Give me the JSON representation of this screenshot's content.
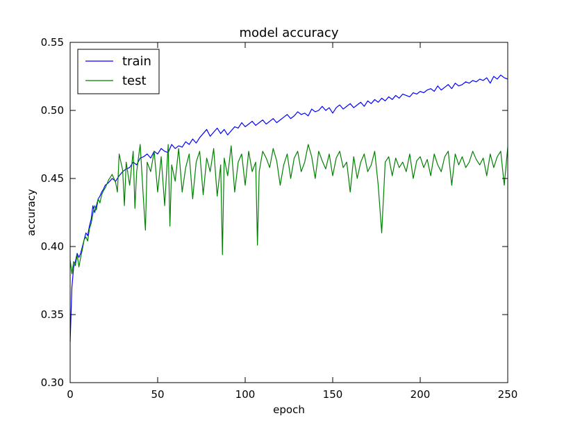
{
  "chart_data": {
    "type": "line",
    "title": "model accuracy",
    "xlabel": "epoch",
    "ylabel": "accuracy",
    "xlim": [
      0,
      250
    ],
    "ylim": [
      0.3,
      0.55
    ],
    "xticks": [
      0,
      50,
      100,
      150,
      200,
      250
    ],
    "yticks": [
      0.3,
      0.35,
      0.4,
      0.45,
      0.5,
      0.55
    ],
    "xtick_labels": [
      "0",
      "50",
      "100",
      "150",
      "200",
      "250"
    ],
    "ytick_labels": [
      "0.30",
      "0.35",
      "0.40",
      "0.45",
      "0.50",
      "0.55"
    ],
    "grid": false,
    "legend_position": "top-left",
    "series": [
      {
        "name": "train",
        "color": "#0000ff",
        "x": [
          0,
          1,
          2,
          3,
          4,
          5,
          6,
          7,
          8,
          9,
          10,
          11,
          12,
          13,
          14,
          15,
          16,
          17,
          18,
          19,
          20,
          22,
          24,
          26,
          28,
          30,
          32,
          34,
          36,
          38,
          40,
          42,
          44,
          46,
          48,
          50,
          52,
          54,
          56,
          58,
          60,
          62,
          64,
          66,
          68,
          70,
          72,
          74,
          76,
          78,
          80,
          82,
          84,
          86,
          88,
          90,
          92,
          94,
          96,
          98,
          100,
          102,
          104,
          106,
          108,
          110,
          112,
          114,
          116,
          118,
          120,
          122,
          124,
          126,
          128,
          130,
          132,
          134,
          136,
          138,
          140,
          142,
          144,
          146,
          148,
          150,
          152,
          154,
          156,
          158,
          160,
          162,
          164,
          166,
          168,
          170,
          172,
          174,
          176,
          178,
          180,
          182,
          184,
          186,
          188,
          190,
          192,
          194,
          196,
          198,
          200,
          202,
          204,
          206,
          208,
          210,
          212,
          214,
          216,
          218,
          220,
          222,
          224,
          226,
          228,
          230,
          232,
          234,
          236,
          238,
          240,
          242,
          244,
          246,
          248,
          250
        ],
        "values": [
          0.33,
          0.37,
          0.385,
          0.389,
          0.395,
          0.392,
          0.395,
          0.4,
          0.405,
          0.41,
          0.408,
          0.415,
          0.42,
          0.43,
          0.425,
          0.43,
          0.435,
          0.437,
          0.44,
          0.442,
          0.445,
          0.447,
          0.45,
          0.448,
          0.452,
          0.455,
          0.457,
          0.458,
          0.462,
          0.46,
          0.465,
          0.466,
          0.468,
          0.465,
          0.47,
          0.468,
          0.472,
          0.47,
          0.469,
          0.475,
          0.472,
          0.474,
          0.473,
          0.477,
          0.475,
          0.479,
          0.476,
          0.48,
          0.483,
          0.486,
          0.481,
          0.484,
          0.487,
          0.483,
          0.486,
          0.482,
          0.485,
          0.488,
          0.487,
          0.491,
          0.488,
          0.49,
          0.492,
          0.489,
          0.491,
          0.493,
          0.49,
          0.492,
          0.494,
          0.491,
          0.493,
          0.495,
          0.497,
          0.494,
          0.496,
          0.499,
          0.497,
          0.498,
          0.496,
          0.501,
          0.499,
          0.5,
          0.503,
          0.5,
          0.502,
          0.498,
          0.502,
          0.504,
          0.501,
          0.503,
          0.505,
          0.502,
          0.504,
          0.506,
          0.503,
          0.507,
          0.505,
          0.508,
          0.506,
          0.509,
          0.507,
          0.51,
          0.508,
          0.511,
          0.509,
          0.512,
          0.511,
          0.51,
          0.513,
          0.512,
          0.514,
          0.513,
          0.515,
          0.516,
          0.514,
          0.518,
          0.515,
          0.517,
          0.519,
          0.516,
          0.52,
          0.518,
          0.519,
          0.521,
          0.52,
          0.522,
          0.521,
          0.523,
          0.522,
          0.524,
          0.52,
          0.525,
          0.523,
          0.526,
          0.524,
          0.523
        ]
      },
      {
        "name": "test",
        "color": "#008000",
        "x": [
          0,
          1,
          2,
          3,
          4,
          5,
          6,
          7,
          8,
          9,
          10,
          11,
          12,
          13,
          14,
          15,
          16,
          17,
          18,
          19,
          20,
          22,
          24,
          26,
          27,
          28,
          30,
          31,
          32,
          34,
          36,
          37,
          38,
          40,
          42,
          43,
          44,
          46,
          48,
          50,
          52,
          54,
          56,
          57,
          58,
          60,
          62,
          64,
          66,
          68,
          70,
          72,
          74,
          76,
          78,
          80,
          82,
          84,
          86,
          87,
          88,
          90,
          92,
          94,
          96,
          98,
          100,
          102,
          104,
          106,
          107,
          108,
          110,
          112,
          114,
          116,
          118,
          120,
          122,
          124,
          126,
          128,
          130,
          132,
          134,
          136,
          138,
          140,
          142,
          144,
          146,
          148,
          150,
          152,
          154,
          156,
          158,
          160,
          162,
          164,
          166,
          168,
          170,
          172,
          174,
          176,
          178,
          180,
          182,
          184,
          186,
          188,
          190,
          192,
          194,
          196,
          198,
          200,
          202,
          204,
          206,
          208,
          210,
          212,
          214,
          216,
          218,
          220,
          222,
          224,
          226,
          228,
          230,
          232,
          234,
          236,
          238,
          240,
          242,
          244,
          246,
          248,
          250
        ],
        "values": [
          0.39,
          0.38,
          0.389,
          0.386,
          0.394,
          0.385,
          0.392,
          0.398,
          0.405,
          0.407,
          0.404,
          0.413,
          0.417,
          0.424,
          0.43,
          0.427,
          0.435,
          0.432,
          0.438,
          0.441,
          0.443,
          0.449,
          0.453,
          0.447,
          0.44,
          0.468,
          0.456,
          0.43,
          0.462,
          0.445,
          0.47,
          0.428,
          0.455,
          0.475,
          0.432,
          0.412,
          0.462,
          0.455,
          0.47,
          0.44,
          0.466,
          0.43,
          0.475,
          0.415,
          0.46,
          0.448,
          0.472,
          0.44,
          0.458,
          0.468,
          0.435,
          0.462,
          0.47,
          0.438,
          0.465,
          0.455,
          0.472,
          0.437,
          0.46,
          0.394,
          0.465,
          0.452,
          0.474,
          0.44,
          0.462,
          0.468,
          0.445,
          0.47,
          0.455,
          0.462,
          0.401,
          0.455,
          0.47,
          0.465,
          0.458,
          0.472,
          0.463,
          0.445,
          0.46,
          0.468,
          0.45,
          0.465,
          0.47,
          0.455,
          0.462,
          0.475,
          0.466,
          0.45,
          0.47,
          0.463,
          0.457,
          0.468,
          0.452,
          0.465,
          0.47,
          0.458,
          0.462,
          0.44,
          0.466,
          0.45,
          0.462,
          0.468,
          0.455,
          0.46,
          0.47,
          0.445,
          0.41,
          0.462,
          0.466,
          0.452,
          0.465,
          0.458,
          0.462,
          0.455,
          0.468,
          0.45,
          0.463,
          0.466,
          0.458,
          0.464,
          0.452,
          0.468,
          0.46,
          0.455,
          0.466,
          0.47,
          0.445,
          0.468,
          0.46,
          0.466,
          0.458,
          0.462,
          0.47,
          0.464,
          0.46,
          0.465,
          0.452,
          0.468,
          0.458,
          0.466,
          0.47,
          0.445,
          0.473
        ]
      }
    ]
  }
}
